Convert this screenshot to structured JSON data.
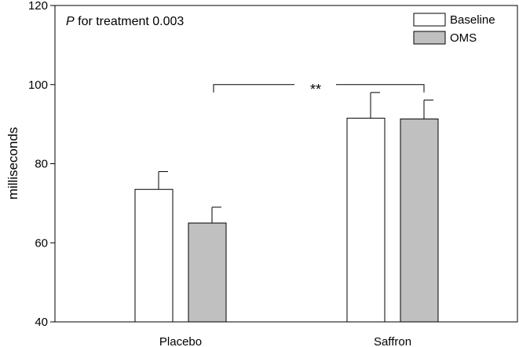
{
  "chart_data": {
    "type": "bar",
    "ylabel": "milliseconds",
    "ylim": [
      40,
      120
    ],
    "yticks": [
      40,
      60,
      80,
      100,
      120
    ],
    "categories": [
      "Placebo",
      "Saffron"
    ],
    "series": [
      {
        "name": "Baseline",
        "color": "#ffffff",
        "values": [
          73.5,
          91.5
        ],
        "errors": [
          4.5,
          6.5
        ]
      },
      {
        "name": "OMS",
        "color": "#c0c0c0",
        "values": [
          65.0,
          91.3
        ],
        "errors": [
          4.0,
          4.8
        ]
      }
    ],
    "annotation": {
      "italic": "P",
      "text": " for treatment 0.003"
    },
    "significance": {
      "label": "**",
      "level": 100
    }
  }
}
